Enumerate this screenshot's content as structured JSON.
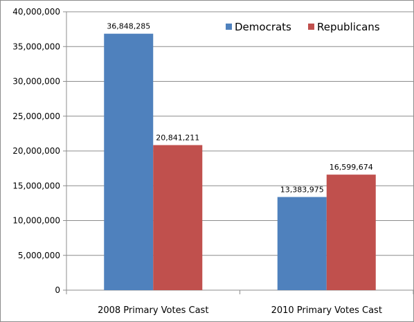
{
  "chart_data": {
    "type": "bar",
    "categories": [
      "2008 Primary Votes Cast",
      "2010 Primary Votes Cast"
    ],
    "series": [
      {
        "name": "Democrats",
        "values": [
          36848285,
          13383975
        ],
        "labels": [
          "36,848,285",
          "13,383,975"
        ],
        "color": "#4F81BD"
      },
      {
        "name": "Republicans",
        "values": [
          20841211,
          16599674
        ],
        "labels": [
          "20,841,211",
          "16,599,674"
        ],
        "color": "#C0504D"
      }
    ],
    "ylim": [
      0,
      40000000
    ],
    "yticks": [
      0,
      5000000,
      10000000,
      15000000,
      20000000,
      25000000,
      30000000,
      35000000,
      40000000
    ],
    "ytick_labels": [
      "0",
      "5,000,000",
      "10,000,000",
      "15,000,000",
      "20,000,000",
      "25,000,000",
      "30,000,000",
      "35,000,000",
      "40,000,000"
    ],
    "grid": "horizontal",
    "legend_position": "top-right",
    "title": "",
    "xlabel": "",
    "ylabel": ""
  }
}
